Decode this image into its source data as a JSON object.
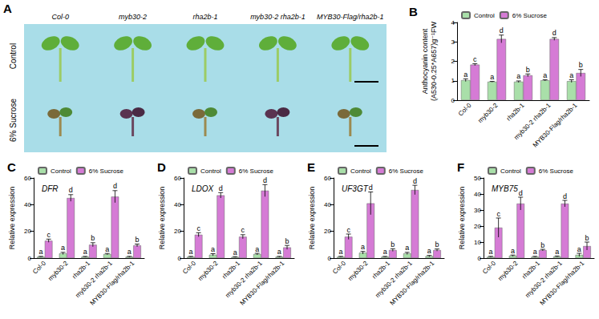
{
  "panel_a": {
    "label": "A",
    "columns": [
      "Col-0",
      "myb30-2",
      "rha2b-1",
      "myb30-2 rha2b-1",
      "MYB30-Flag/rha2b-1"
    ],
    "rows": [
      "Control",
      "6% Sucrose"
    ]
  },
  "chart_data": [
    {
      "type": "bar",
      "panel_label": "B",
      "y_label": "Anthocyanin content\n(A530-0.25*A657)g⁻¹FW",
      "categories": [
        "Col-0",
        "myb30-2",
        "rha2b-1",
        "myb30-2 rha2b-1",
        "MYB30-Flag/rha2b-1"
      ],
      "ylim": [
        0,
        4
      ],
      "yticks": [
        0,
        1,
        2,
        3,
        4
      ],
      "grid": false,
      "legend": "top-left",
      "series": [
        {
          "name": "Control",
          "color": "#a9dfa9",
          "values": [
            1.03,
            0.95,
            0.95,
            1.02,
            0.98
          ],
          "errors": [
            0.07,
            0.02,
            0.04,
            0.03,
            0.07
          ],
          "sig_labels": [
            "a",
            "a",
            "a",
            "a",
            "a"
          ]
        },
        {
          "name": "6% Sucrose",
          "color": "#d57bd5",
          "values": [
            1.83,
            3.15,
            1.28,
            3.15,
            1.4
          ],
          "errors": [
            0.05,
            0.2,
            0.07,
            0.07,
            0.18
          ],
          "sig_labels": [
            "c",
            "d",
            "b",
            "d",
            "b"
          ]
        }
      ]
    },
    {
      "type": "bar",
      "panel_label": "C",
      "title": "DFR",
      "y_label": "Relative expression",
      "categories": [
        "Col-0",
        "myb30-2",
        "rha2b-1",
        "myb30-2 rha2b-1",
        "MYB30-Flag/rha2b-1"
      ],
      "ylim": [
        0,
        60
      ],
      "yticks": [
        0,
        20,
        40,
        60
      ],
      "grid": false,
      "legend": "top-left",
      "series": [
        {
          "name": "Control",
          "color": "#a9dfa9",
          "values": [
            1,
            3.5,
            1,
            3,
            1
          ],
          "errors": [
            0.3,
            0.8,
            0.3,
            0.5,
            0.3
          ],
          "sig_labels": [
            "a",
            "a",
            "a",
            "a",
            "a"
          ]
        },
        {
          "name": "6% Sucrose",
          "color": "#d57bd5",
          "values": [
            13,
            45,
            10,
            46,
            9.5
          ],
          "errors": [
            1.2,
            2.5,
            1.5,
            4.5,
            1
          ],
          "sig_labels": [
            "c",
            "d",
            "b",
            "d",
            "b"
          ]
        }
      ]
    },
    {
      "type": "bar",
      "panel_label": "D",
      "title": "LDOX",
      "y_label": "Relative expression",
      "categories": [
        "Col-0",
        "myb30-2",
        "rha2b-1",
        "myb30-2 rha2b-1",
        "MYB30-Flag/rha2b-1"
      ],
      "ylim": [
        0,
        60
      ],
      "yticks": [
        0,
        20,
        40,
        60
      ],
      "grid": false,
      "legend": "top-left",
      "series": [
        {
          "name": "Control",
          "color": "#a9dfa9",
          "values": [
            1,
            2.5,
            0.8,
            3,
            1
          ],
          "errors": [
            0.3,
            0.8,
            0.3,
            0.6,
            0.3
          ],
          "sig_labels": [
            "a",
            "a",
            "a",
            "a",
            "a"
          ]
        },
        {
          "name": "6% Sucrose",
          "color": "#d57bd5",
          "values": [
            17.5,
            47,
            16,
            50.5,
            8
          ],
          "errors": [
            1.5,
            2,
            1.5,
            4.5,
            1.5
          ],
          "sig_labels": [
            "c",
            "d",
            "c",
            "d",
            "b"
          ]
        }
      ]
    },
    {
      "type": "bar",
      "panel_label": "E",
      "title": "UF3GT",
      "y_label": "Relative expression",
      "categories": [
        "Col-0",
        "myb30-2",
        "rha2b-1",
        "myb30-2 rha2b-1",
        "MYB30-Flag/rha2b-1"
      ],
      "ylim": [
        0,
        60
      ],
      "yticks": [
        0,
        20,
        40,
        60
      ],
      "grid": false,
      "legend": "top-left",
      "series": [
        {
          "name": "Control",
          "color": "#a9dfa9",
          "values": [
            1,
            4,
            1,
            3.5,
            1.5
          ],
          "errors": [
            0.3,
            1,
            0.3,
            0.8,
            0.5
          ],
          "sig_labels": [
            "a",
            "a",
            "a",
            "a",
            "a"
          ]
        },
        {
          "name": "6% Sucrose",
          "color": "#d57bd5",
          "values": [
            16,
            41,
            6,
            51,
            6
          ],
          "errors": [
            2,
            8.5,
            1,
            3.5,
            0.8
          ],
          "sig_labels": [
            "c",
            "d",
            "b",
            "d",
            "b"
          ]
        }
      ]
    },
    {
      "type": "bar",
      "panel_label": "F",
      "title": "MYB75",
      "y_label": "Relative expression",
      "categories": [
        "Col-0",
        "myb30-2",
        "rha2b-1",
        "myb30-2 rha2b-1",
        "MYB30-Flag/rha2b-1"
      ],
      "ylim": [
        0,
        50
      ],
      "yticks": [
        0,
        10,
        20,
        30,
        40,
        50
      ],
      "grid": false,
      "legend": "top-left",
      "series": [
        {
          "name": "Control",
          "color": "#a9dfa9",
          "values": [
            0.8,
            1.5,
            0.8,
            1,
            2
          ],
          "errors": [
            0.3,
            0.4,
            0.3,
            0.3,
            1
          ],
          "sig_labels": [
            "a",
            "a",
            "a",
            "a",
            "a"
          ]
        },
        {
          "name": "6% Sucrose",
          "color": "#d57bd5",
          "values": [
            19,
            34,
            5,
            34,
            7.5
          ],
          "errors": [
            6,
            4,
            0.5,
            2,
            2.5
          ],
          "sig_labels": [
            "c",
            "d",
            "b",
            "d",
            "b"
          ]
        }
      ]
    }
  ]
}
